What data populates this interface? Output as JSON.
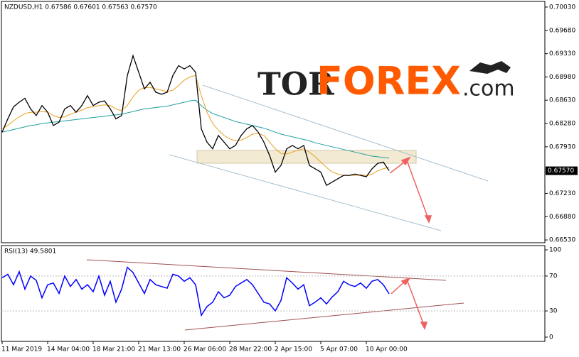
{
  "chart_data": {
    "type": "line",
    "title": "NZDUSD,H1 0.67586 0.67601 0.67563 0.67570",
    "watermark": [
      "TOR",
      "FOREX",
      ".com"
    ],
    "categories": [
      "11 Mar 2019",
      null,
      null,
      null,
      null,
      null,
      null,
      null,
      "14 Mar 04:00",
      null,
      null,
      null,
      null,
      null,
      null,
      null,
      "18 Mar 21:00",
      null,
      null,
      null,
      null,
      null,
      null,
      null,
      "21 Mar 13:00",
      null,
      null,
      null,
      null,
      null,
      null,
      null,
      "26 Mar 06:00",
      null,
      null,
      null,
      null,
      null,
      null,
      null,
      "28 Mar 22:00",
      null,
      null,
      null,
      null,
      null,
      null,
      null,
      "2 Apr 15:00",
      null,
      null,
      null,
      null,
      null,
      null,
      null,
      "5 Apr 07:00",
      null,
      null,
      null,
      null,
      null,
      null,
      null,
      "10 Apr 00:00",
      null,
      null,
      null,
      null
    ],
    "series": [
      {
        "name": "NZDUSD",
        "color": "#000000",
        "values": [
          0.6815,
          0.6835,
          0.6853,
          0.686,
          0.6866,
          0.685,
          0.684,
          0.6855,
          0.6845,
          0.6825,
          0.683,
          0.685,
          0.6855,
          0.6845,
          0.6855,
          0.687,
          0.6855,
          0.686,
          0.6862,
          0.685,
          0.6835,
          0.684,
          0.69,
          0.693,
          0.6905,
          0.688,
          0.689,
          0.6875,
          0.6872,
          0.6875,
          0.69,
          0.6915,
          0.691,
          0.6915,
          0.6905,
          0.682,
          0.68,
          0.679,
          0.681,
          0.68,
          0.679,
          0.6795,
          0.681,
          0.682,
          0.6825,
          0.6815,
          0.68,
          0.678,
          0.6755,
          0.6765,
          0.679,
          0.6795,
          0.679,
          0.6795,
          0.6765,
          0.676,
          0.6755,
          0.6735,
          0.674,
          0.6745,
          0.675,
          0.675,
          0.6752,
          0.675,
          0.6748,
          0.676,
          0.6768,
          0.677,
          0.6757
        ]
      },
      {
        "name": "MA fast",
        "color": "#e8a020",
        "values": [
          0.682,
          0.6825,
          0.6832,
          0.6838,
          0.6843,
          0.6845,
          0.6845,
          0.6846,
          0.6845,
          0.684,
          0.6837,
          0.6838,
          0.6842,
          0.6845,
          0.6848,
          0.6852,
          0.6853,
          0.6855,
          0.6856,
          0.6855,
          0.685,
          0.6847,
          0.6855,
          0.6868,
          0.6878,
          0.6882,
          0.6882,
          0.688,
          0.6878,
          0.6876,
          0.6878,
          0.6885,
          0.6893,
          0.6898,
          0.69,
          0.687,
          0.6845,
          0.6828,
          0.6818,
          0.681,
          0.6805,
          0.6802,
          0.6803,
          0.6807,
          0.6812,
          0.6813,
          0.681,
          0.68,
          0.679,
          0.6783,
          0.6782,
          0.6785,
          0.6788,
          0.679,
          0.6785,
          0.6778,
          0.677,
          0.6762,
          0.6755,
          0.6752,
          0.675,
          0.675,
          0.675,
          0.6751,
          0.675,
          0.6752,
          0.6757,
          0.676,
          0.6762
        ]
      },
      {
        "name": "MA slow",
        "color": "#20a0a0",
        "values": [
          0.6815,
          0.6817,
          0.6819,
          0.6821,
          0.6823,
          0.6825,
          0.6826,
          0.6828,
          0.6829,
          0.683,
          0.6831,
          0.6832,
          0.6833,
          0.6834,
          0.6835,
          0.6836,
          0.6837,
          0.6838,
          0.6839,
          0.684,
          0.6841,
          0.6842,
          0.6844,
          0.6846,
          0.6848,
          0.685,
          0.6851,
          0.6852,
          0.6853,
          0.6854,
          0.6856,
          0.6858,
          0.686,
          0.6862,
          0.6863,
          0.6855,
          0.6848,
          0.6843,
          0.684,
          0.6837,
          0.6834,
          0.6831,
          0.6829,
          0.6827,
          0.6825,
          0.6823,
          0.6821,
          0.6818,
          0.6815,
          0.6812,
          0.681,
          0.6808,
          0.6806,
          0.6804,
          0.6802,
          0.6799,
          0.6797,
          0.6795,
          0.6793,
          0.6791,
          0.6789,
          0.6787,
          0.6785,
          0.6783,
          0.6781,
          0.6779,
          0.6778,
          0.6777,
          0.6776
        ]
      }
    ],
    "ylim": [
      0.66488,
      0.70115
    ],
    "yticks": [
      {
        "value": 0.6653,
        "label": "0.66530"
      },
      {
        "value": 0.6688,
        "label": "0.66880"
      },
      {
        "value": 0.6723,
        "label": "0.67230"
      },
      {
        "value": 0.6793,
        "label": "0.67930"
      },
      {
        "value": 0.6828,
        "label": "0.68280"
      },
      {
        "value": 0.6863,
        "label": "0.68630"
      },
      {
        "value": 0.6898,
        "label": "0.68980"
      },
      {
        "value": 0.6933,
        "label": "0.69330"
      },
      {
        "value": 0.6968,
        "label": "0.69680"
      },
      {
        "value": 0.7003,
        "label": "0.70030"
      }
    ],
    "last_price": {
      "value": 0.6757,
      "label": "0.67570"
    },
    "rsi": {
      "title": "RSI(13) 49.5801",
      "color": "#0000ff",
      "ylim": [
        -4.9,
        104.9
      ],
      "yticks": [
        0,
        30,
        70,
        100
      ],
      "values": [
        68,
        72,
        60,
        75,
        55,
        70,
        65,
        45,
        60,
        62,
        50,
        70,
        58,
        66,
        55,
        60,
        52,
        70,
        48,
        64,
        40,
        55,
        80,
        74,
        62,
        50,
        66,
        60,
        58,
        56,
        72,
        70,
        64,
        68,
        60,
        25,
        35,
        40,
        52,
        45,
        48,
        58,
        62,
        66,
        60,
        50,
        40,
        38,
        30,
        42,
        68,
        62,
        55,
        60,
        36,
        40,
        45,
        38,
        46,
        52,
        64,
        60,
        58,
        62,
        56,
        64,
        66,
        60,
        49.5801
      ]
    }
  }
}
